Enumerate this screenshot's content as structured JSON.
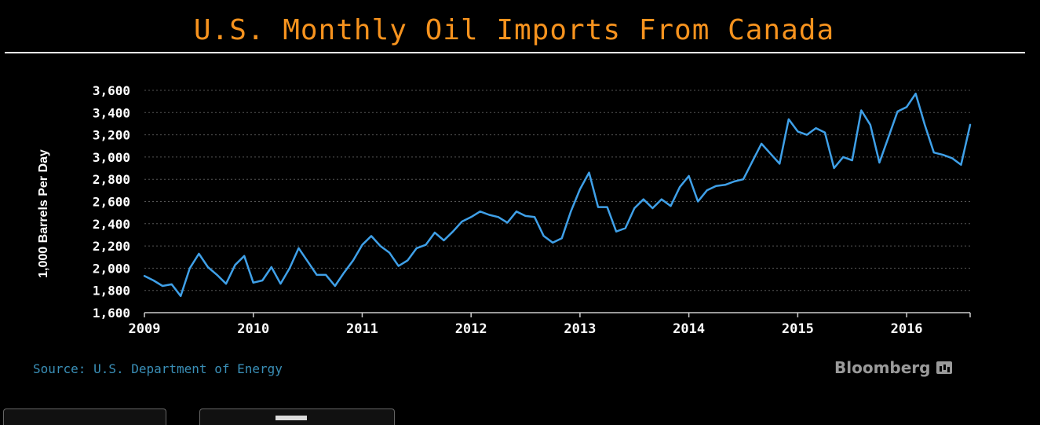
{
  "chart_data": {
    "type": "line",
    "title": "U.S. Monthly Oil Imports From Canada",
    "ylabel": "1,000 Barrels Per Day",
    "xlabel": "",
    "ylim": [
      1600,
      3600
    ],
    "yticks": [
      1600,
      1800,
      2000,
      2200,
      2400,
      2600,
      2800,
      3000,
      3200,
      3400,
      3600
    ],
    "ytick_labels": [
      "1,600",
      "1,800",
      "2,000",
      "2,200",
      "2,400",
      "2,600",
      "2,800",
      "3,000",
      "3,200",
      "3,400",
      "3,600"
    ],
    "xlim": [
      "2009-01",
      "2016-08"
    ],
    "xtick_labels": [
      "2009",
      "2010",
      "2011",
      "2012",
      "2013",
      "2014",
      "2015",
      "2016"
    ],
    "grid": "horizontal dotted",
    "line_color": "#3fa0e8",
    "series": [
      {
        "x": [
          "2009-01",
          "2009-02",
          "2009-03",
          "2009-04",
          "2009-05",
          "2009-06",
          "2009-07",
          "2009-08",
          "2009-09",
          "2009-10",
          "2009-11",
          "2009-12",
          "2010-01",
          "2010-02",
          "2010-03",
          "2010-04",
          "2010-05",
          "2010-06",
          "2010-07",
          "2010-08",
          "2010-09",
          "2010-10",
          "2010-11",
          "2010-12",
          "2011-01",
          "2011-02",
          "2011-03",
          "2011-04",
          "2011-05",
          "2011-06",
          "2011-07",
          "2011-08",
          "2011-09",
          "2011-10",
          "2011-11",
          "2011-12",
          "2012-01",
          "2012-02",
          "2012-03",
          "2012-04",
          "2012-05",
          "2012-06",
          "2012-07",
          "2012-08",
          "2012-09",
          "2012-10",
          "2012-11",
          "2012-12",
          "2013-01",
          "2013-02",
          "2013-03",
          "2013-04",
          "2013-05",
          "2013-06",
          "2013-07",
          "2013-08",
          "2013-09",
          "2013-10",
          "2013-11",
          "2013-12",
          "2014-01",
          "2014-02",
          "2014-03",
          "2014-04",
          "2014-05",
          "2014-06",
          "2014-07",
          "2014-08",
          "2014-09",
          "2014-10",
          "2014-11",
          "2014-12",
          "2015-01",
          "2015-02",
          "2015-03",
          "2015-04",
          "2015-05",
          "2015-06",
          "2015-07",
          "2015-08",
          "2015-09",
          "2015-10",
          "2015-11",
          "2015-12",
          "2016-01",
          "2016-02",
          "2016-03",
          "2016-04",
          "2016-05",
          "2016-06",
          "2016-07",
          "2016-08"
        ],
        "values": [
          1930,
          1890,
          1840,
          1855,
          1750,
          2000,
          2130,
          2010,
          1940,
          1860,
          2030,
          2110,
          1870,
          1890,
          2010,
          1860,
          2000,
          2180,
          2060,
          1940,
          1940,
          1840,
          1960,
          2070,
          2210,
          2290,
          2200,
          2140,
          2020,
          2070,
          2180,
          2210,
          2320,
          2250,
          2330,
          2420,
          2460,
          2510,
          2480,
          2460,
          2410,
          2510,
          2470,
          2460,
          2290,
          2230,
          2270,
          2510,
          2710,
          2860,
          2550,
          2550,
          2330,
          2360,
          2540,
          2620,
          2540,
          2620,
          2560,
          2730,
          2830,
          2600,
          2700,
          2740,
          2750,
          2780,
          2800,
          2960,
          3120,
          3030,
          2940,
          3340,
          3230,
          3200,
          3260,
          3220,
          2900,
          3000,
          2970,
          3420,
          3290,
          2950,
          3180,
          3410,
          3450,
          3570,
          3290,
          3040,
          3020,
          2990,
          2930,
          3290
        ]
      }
    ]
  },
  "source": "Source: U.S. Department of Energy",
  "brand": "Bloomberg",
  "brand_icon": "bloomberg-chart-icon"
}
